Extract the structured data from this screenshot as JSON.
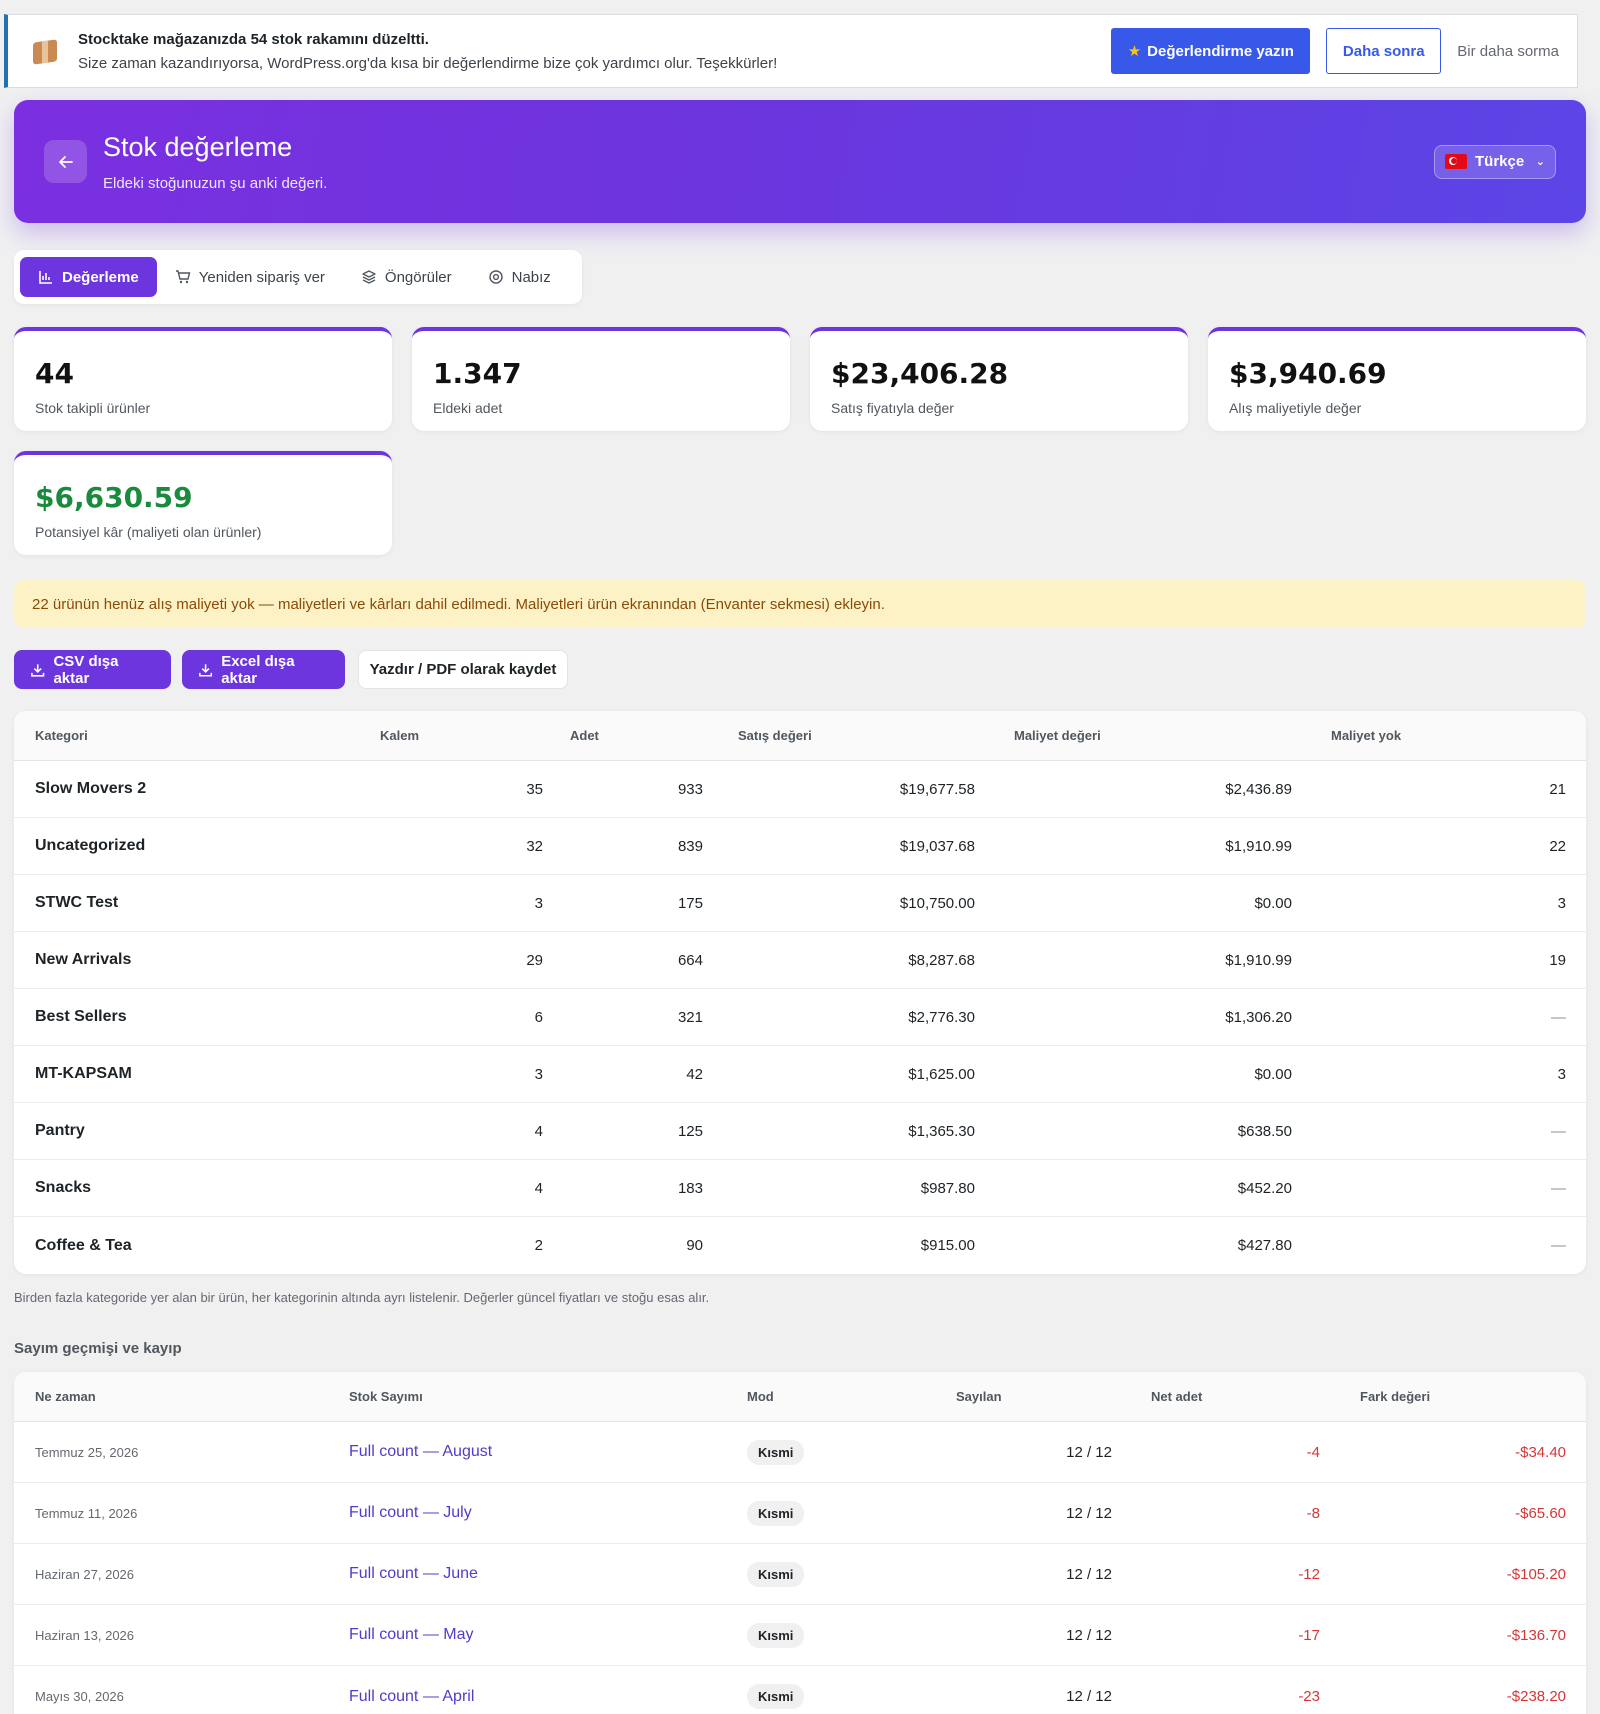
{
  "notice": {
    "title": "Stocktake mağazanızda 54 stok rakamını düzeltti.",
    "sub": "Size zaman kazandırıyorsa, WordPress.org'da kısa bir değerlendirme bize çok yardımcı olur. Teşekkürler!",
    "review_label": "Değerlendirme yazın",
    "later_label": "Daha sonra",
    "never_label": "Bir daha sorma",
    "border_color": "#2271b1"
  },
  "header": {
    "title": "Stok değerleme",
    "subtitle": "Eldeki stoğunuzun şu anki değeri.",
    "language": "Türkçe"
  },
  "tabs": [
    {
      "label": "Değerleme",
      "icon": "bar-chart-icon",
      "active": true
    },
    {
      "label": "Yeniden sipariş ver",
      "icon": "cart-icon",
      "active": false
    },
    {
      "label": "Öngörüler",
      "icon": "layers-icon",
      "active": false
    },
    {
      "label": "Nabız",
      "icon": "pulse-icon",
      "active": false
    }
  ],
  "stats": [
    {
      "value": "44",
      "label": "Stok takipli ürünler"
    },
    {
      "value": "1.347",
      "label": "Eldeki adet"
    },
    {
      "value": "$23,406.28",
      "label": "Satış fiyatıyla değer"
    },
    {
      "value": "$3,940.69",
      "label": "Alış maliyetiyle değer"
    },
    {
      "value": "$6,630.59",
      "label": "Potansiyel kâr (maliyeti olan ürünler)"
    }
  ],
  "warning": "22 ürünün henüz alış maliyeti yok — maliyetleri ve kârları dahil edilmedi. Maliyetleri ürün ekranından (Envanter sekmesi) ekleyin.",
  "actions": {
    "csv": "CSV dışa aktar",
    "excel": "Excel dışa aktar",
    "print": "Yazdır / PDF olarak kaydet"
  },
  "category_table": {
    "headers": [
      "Kategori",
      "Kalem",
      "Adet",
      "Satış değeri",
      "Maliyet değeri",
      "Maliyet yok"
    ],
    "rows": [
      [
        "Slow Movers 2",
        "35",
        "933",
        "$19,677.58",
        "$2,436.89",
        "21"
      ],
      [
        "Uncategorized",
        "32",
        "839",
        "$19,037.68",
        "$1,910.99",
        "22"
      ],
      [
        "STWC Test",
        "3",
        "175",
        "$10,750.00",
        "$0.00",
        "3"
      ],
      [
        "New Arrivals",
        "29",
        "664",
        "$8,287.68",
        "$1,910.99",
        "19"
      ],
      [
        "Best Sellers",
        "6",
        "321",
        "$2,776.30",
        "$1,306.20",
        "—"
      ],
      [
        "MT-KAPSAM",
        "3",
        "42",
        "$1,625.00",
        "$0.00",
        "3"
      ],
      [
        "Pantry",
        "4",
        "125",
        "$1,365.30",
        "$638.50",
        "—"
      ],
      [
        "Snacks",
        "4",
        "183",
        "$987.80",
        "$452.20",
        "—"
      ],
      [
        "Coffee & Tea",
        "2",
        "90",
        "$915.00",
        "$427.80",
        "—"
      ]
    ]
  },
  "footnote": "Birden fazla kategoride yer alan bir ürün, her kategorinin altında ayrı listelenir. Değerler güncel fiyatları ve stoğu esas alır.",
  "history": {
    "title": "Sayım geçmişi ve kayıp",
    "headers": [
      "Ne zaman",
      "Stok Sayımı",
      "Mod",
      "Sayılan",
      "Net adet",
      "Fark değeri"
    ],
    "rows": [
      [
        "Temmuz 25, 2026",
        "Full count — August",
        "Kısmi",
        "12 / 12",
        "-4",
        "-$34.40"
      ],
      [
        "Temmuz 11, 2026",
        "Full count — July",
        "Kısmi",
        "12 / 12",
        "-8",
        "-$65.60"
      ],
      [
        "Haziran 27, 2026",
        "Full count — June",
        "Kısmi",
        "12 / 12",
        "-12",
        "-$105.20"
      ],
      [
        "Haziran 13, 2026",
        "Full count — May",
        "Kısmi",
        "12 / 12",
        "-17",
        "-$136.70"
      ],
      [
        "Mayıs 30, 2026",
        "Full count — April",
        "Kısmi",
        "12 / 12",
        "-23",
        "-$238.20"
      ]
    ]
  },
  "colors": {
    "accent": "#6c35de",
    "review_button": "#3858e9",
    "negative": "#d63638",
    "profit": "#1a8a3c",
    "warning_bg": "#fdf2c5"
  }
}
